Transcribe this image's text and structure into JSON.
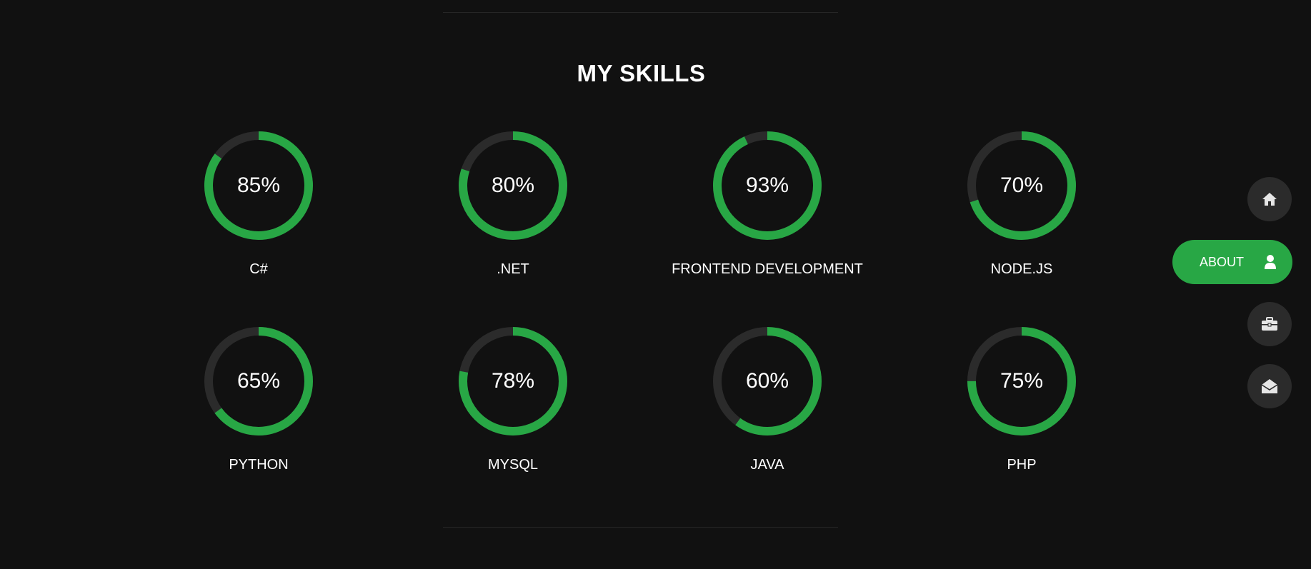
{
  "section": {
    "title": "MY SKILLS"
  },
  "colors": {
    "accent": "#28a745",
    "track": "#2b2b2b",
    "background": "#111111"
  },
  "skills": [
    {
      "name": "C#",
      "percent": 85,
      "value_label": "85%"
    },
    {
      "name": ".NET",
      "percent": 80,
      "value_label": "80%"
    },
    {
      "name": "FRONTEND DEVELOPMENT",
      "percent": 93,
      "value_label": "93%"
    },
    {
      "name": "NODE.JS",
      "percent": 70,
      "value_label": "70%"
    },
    {
      "name": "PYTHON",
      "percent": 65,
      "value_label": "65%"
    },
    {
      "name": "MYSQL",
      "percent": 78,
      "value_label": "78%"
    },
    {
      "name": "JAVA",
      "percent": 60,
      "value_label": "60%"
    },
    {
      "name": "PHP",
      "percent": 75,
      "value_label": "75%"
    }
  ],
  "nav": {
    "items": [
      {
        "icon": "home-icon",
        "label": ""
      },
      {
        "icon": "user-icon",
        "label": "ABOUT",
        "active": true
      },
      {
        "icon": "briefcase-icon",
        "label": ""
      },
      {
        "icon": "envelope-open-icon",
        "label": ""
      }
    ]
  }
}
